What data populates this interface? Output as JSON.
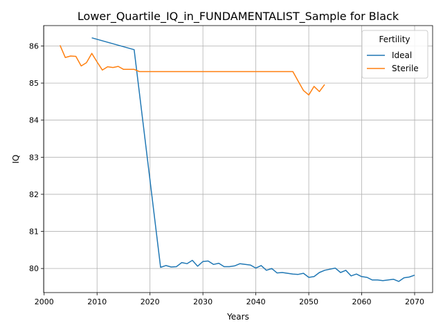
{
  "chart_data": {
    "type": "line",
    "title": "Lower_Quartile_IQ_in_FUNDAMENTALIST_Sample for Black",
    "xlabel": "Years",
    "ylabel": "IQ",
    "xlim": [
      1999.9,
      2073.4
    ],
    "ylim": [
      79.35,
      86.55
    ],
    "xticks": [
      2000,
      2010,
      2020,
      2030,
      2040,
      2050,
      2060,
      2070
    ],
    "yticks": [
      80,
      81,
      82,
      83,
      84,
      85,
      86
    ],
    "grid": true,
    "legend": {
      "title": "Fertility",
      "placement": "upper right"
    },
    "series": [
      {
        "name": "Ideal",
        "color": "#1f77b4",
        "x": [
          2009,
          2017,
          2022,
          2023,
          2024,
          2025,
          2026,
          2027,
          2028,
          2029,
          2030,
          2031,
          2032,
          2033,
          2034,
          2035,
          2036,
          2037,
          2038,
          2039,
          2040,
          2041,
          2042,
          2043,
          2044,
          2045,
          2046,
          2047,
          2048,
          2049,
          2050,
          2051,
          2052,
          2053,
          2054,
          2055,
          2056,
          2057,
          2058,
          2059,
          2060,
          2061,
          2062,
          2063,
          2064,
          2065,
          2066,
          2067,
          2068,
          2069,
          2070
        ],
        "y": [
          86.22,
          85.9,
          80.03,
          80.08,
          80.04,
          80.05,
          80.16,
          80.13,
          80.22,
          80.06,
          80.19,
          80.2,
          80.11,
          80.14,
          80.05,
          80.05,
          80.07,
          80.13,
          80.11,
          80.09,
          80.01,
          80.08,
          79.95,
          80.0,
          79.88,
          79.89,
          79.87,
          79.85,
          79.84,
          79.87,
          79.76,
          79.78,
          79.89,
          79.95,
          79.98,
          80.01,
          79.89,
          79.95,
          79.8,
          79.85,
          79.78,
          79.76,
          79.69,
          79.69,
          79.67,
          79.69,
          79.71,
          79.65,
          79.75,
          79.77,
          79.82
        ]
      },
      {
        "name": "Sterile",
        "color": "#ff7f0e",
        "x": [
          2003,
          2004,
          2005,
          2006,
          2007,
          2008,
          2009,
          2010,
          2011,
          2012,
          2013,
          2014,
          2015,
          2016,
          2017,
          2018,
          2019,
          2020,
          2021,
          2022,
          2023,
          2024,
          2025,
          2026,
          2027,
          2028,
          2029,
          2030,
          2031,
          2032,
          2033,
          2034,
          2035,
          2036,
          2037,
          2038,
          2039,
          2040,
          2041,
          2042,
          2043,
          2044,
          2045,
          2046,
          2047,
          2048,
          2049,
          2050,
          2051,
          2052,
          2053
        ],
        "y": [
          86.02,
          85.69,
          85.73,
          85.72,
          85.46,
          85.55,
          85.8,
          85.57,
          85.35,
          85.44,
          85.42,
          85.45,
          85.37,
          85.37,
          85.37,
          85.31,
          85.31,
          85.31,
          85.31,
          85.31,
          85.31,
          85.31,
          85.31,
          85.31,
          85.31,
          85.31,
          85.31,
          85.31,
          85.31,
          85.31,
          85.31,
          85.31,
          85.31,
          85.31,
          85.31,
          85.31,
          85.31,
          85.31,
          85.31,
          85.31,
          85.31,
          85.31,
          85.31,
          85.31,
          85.31,
          85.05,
          84.8,
          84.68,
          84.91,
          84.77,
          84.96
        ]
      }
    ]
  }
}
